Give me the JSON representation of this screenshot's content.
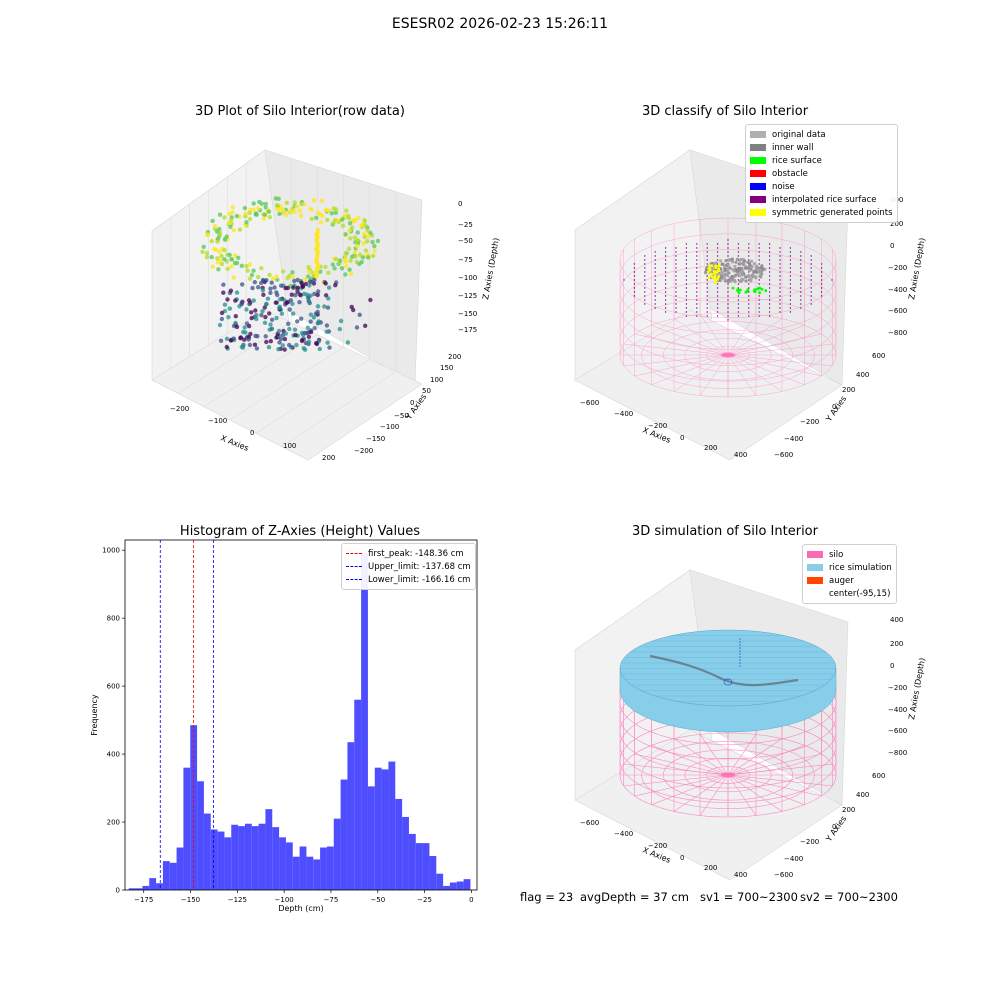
{
  "figure_title": "ESESR02 2026-02-23 15:26:11",
  "colors": {
    "silo": "#ff69b4",
    "rice_sim": "#87ceeb",
    "auger": "#ff4500",
    "hist_bar": "#4444ff",
    "first_peak_line": "#ff0000",
    "limit_line": "#0000ff",
    "original_data": "#b0b0b0",
    "inner_wall": "#808080",
    "rice_surface": "#00ff00",
    "obstacle": "#ff0000",
    "noise": "#0000ff",
    "interpolated": "#800080",
    "symmetric": "#ffff00"
  },
  "panels": {
    "raw": {
      "title": "3D Plot of Silo Interior(row data)",
      "xlabel": "X Axies",
      "ylabel": "Y Axies",
      "zlabel": "Z Axies (Depth)",
      "x_ticks": [
        "−200",
        "−100",
        "0",
        "100",
        "200"
      ],
      "y_ticks": [
        "200",
        "150",
        "100",
        "50",
        "0",
        "−50",
        "−100",
        "−150",
        "−200"
      ],
      "z_ticks": [
        "0",
        "−25",
        "−50",
        "−75",
        "−100",
        "−125",
        "−150",
        "−175"
      ]
    },
    "classify": {
      "title": "3D classify of Silo Interior",
      "xlabel": "X Axies",
      "ylabel": "Y Axies",
      "zlabel": "Z Axies (Depth)",
      "x_ticks": [
        "−600",
        "−400",
        "−200",
        "0",
        "200",
        "400"
      ],
      "y_ticks": [
        "600",
        "400",
        "200",
        "0",
        "−200",
        "−400",
        "−600"
      ],
      "z_ticks": [
        "400",
        "200",
        "0",
        "−200",
        "−400",
        "−600",
        "−800"
      ],
      "legend": [
        {
          "label": "original data",
          "color": "#b0b0b0"
        },
        {
          "label": "inner wall",
          "color": "#808080"
        },
        {
          "label": "rice surface",
          "color": "#00ff00"
        },
        {
          "label": "obstacle",
          "color": "#ff0000"
        },
        {
          "label": "noise",
          "color": "#0000ff"
        },
        {
          "label": "interpolated rice surface",
          "color": "#800080"
        },
        {
          "label": "symmetric generated points",
          "color": "#ffff00"
        }
      ]
    },
    "simulation": {
      "title": "3D simulation of Silo Interior",
      "xlabel": "X Axies",
      "ylabel": "Y Axies",
      "zlabel": "Z Axies (Depth)",
      "x_ticks": [
        "−600",
        "−400",
        "−200",
        "0",
        "200",
        "400"
      ],
      "y_ticks": [
        "600",
        "400",
        "200",
        "0",
        "−200",
        "−400",
        "−600"
      ],
      "z_ticks": [
        "400",
        "200",
        "0",
        "−200",
        "−400",
        "−600",
        "−800"
      ],
      "legend": [
        {
          "label": "silo",
          "color": "#ff69b4"
        },
        {
          "label": "rice simulation",
          "color": "#87ceeb"
        },
        {
          "label": "auger",
          "color": "#ff4500"
        },
        {
          "label": "center(-95,15)",
          "color": ""
        }
      ]
    }
  },
  "chart_data": {
    "type": "bar",
    "title": "Histogram of Z-Axies (Height) Values",
    "xlabel": "Depth (cm)",
    "ylabel": "Frequency",
    "xlim": [
      -185,
      3
    ],
    "ylim": [
      0,
      1030
    ],
    "x_ticks": [
      -175,
      -150,
      -125,
      -100,
      -75,
      -50,
      -25,
      0
    ],
    "x_tick_labels": [
      "−175",
      "−150",
      "−125",
      "−100",
      "−75",
      "−50",
      "−25",
      "0"
    ],
    "y_ticks": [
      0,
      200,
      400,
      600,
      800,
      1000
    ],
    "y_tick_labels": [
      "0",
      "200",
      "400",
      "600",
      "800",
      "1000"
    ],
    "bin_start": -183,
    "bin_width": 3.65,
    "values": [
      5,
      5,
      12,
      35,
      20,
      85,
      80,
      125,
      360,
      485,
      320,
      225,
      178,
      172,
      155,
      192,
      188,
      195,
      188,
      195,
      238,
      185,
      155,
      140,
      98,
      128,
      98,
      90,
      125,
      128,
      210,
      325,
      435,
      560,
      990,
      305,
      360,
      355,
      378,
      268,
      215,
      165,
      138,
      138,
      100,
      48,
      12,
      22,
      25,
      32
    ],
    "lines": [
      {
        "name": "first_peak",
        "value": -148.36,
        "label": "first_peak: -148.36 cm",
        "color": "#ff0000"
      },
      {
        "name": "upper_limit",
        "value": -137.68,
        "label": "Upper_limit: -137.68 cm",
        "color": "#0000ff"
      },
      {
        "name": "lower_limit",
        "value": -166.16,
        "label": "Lower_limit: -166.16 cm",
        "color": "#0000ff"
      }
    ],
    "legend_position": "top-right",
    "grid": false
  },
  "footer": {
    "flag": "flag = 23",
    "avg_depth": "avgDepth = 37 cm",
    "sv1": "sv1 = 700~2300",
    "sv2": "sv2 = 700~2300"
  }
}
